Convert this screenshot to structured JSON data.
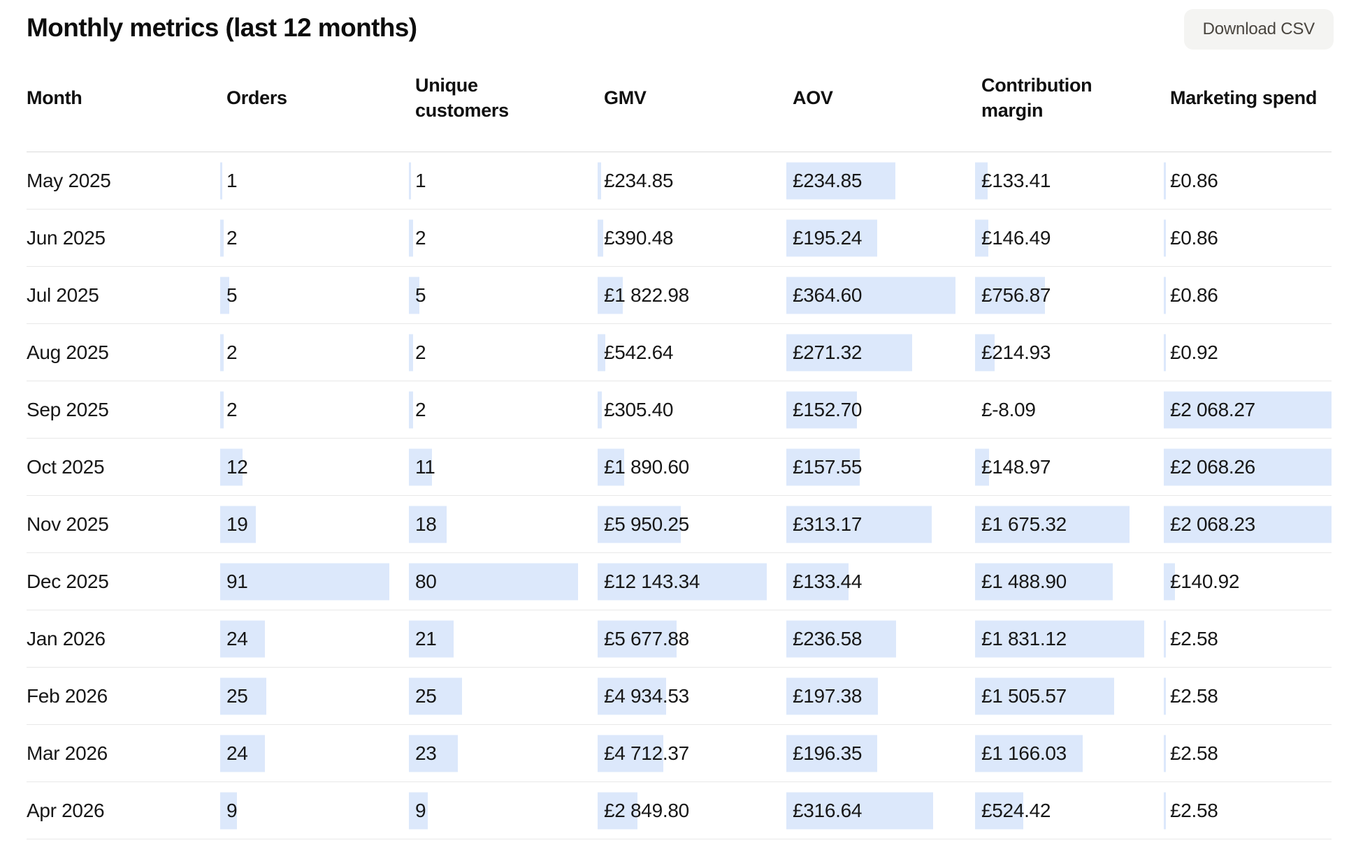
{
  "page": {
    "title": "Monthly metrics (last 12 months)",
    "download_button_label": "Download CSV"
  },
  "colors": {
    "bar": "#dce8fb",
    "row_divider": "#e8e8e8",
    "header_divider": "#dadada",
    "button_bg": "#f4f4f2",
    "button_text": "#49453f"
  },
  "table": {
    "columns": [
      {
        "key": "month",
        "label": "Month"
      },
      {
        "key": "orders",
        "label": "Orders",
        "max": 91
      },
      {
        "key": "unique_customers",
        "label": "Unique customers",
        "max": 80
      },
      {
        "key": "gmv",
        "label": "GMV",
        "max": 12143.34
      },
      {
        "key": "aov",
        "label": "AOV",
        "max": 364.6
      },
      {
        "key": "contribution_margin",
        "label": "Contribution margin",
        "max": 1831.12
      },
      {
        "key": "marketing_spend",
        "label": "Marketing spend",
        "max": 2068.27
      }
    ],
    "rows": [
      {
        "month": "May 2025",
        "values": [
          1,
          1,
          234.85,
          234.85,
          133.41,
          0.86
        ],
        "display": [
          "1",
          "1",
          "£234.85",
          "£234.85",
          "£133.41",
          "£0.86"
        ]
      },
      {
        "month": "Jun 2025",
        "values": [
          2,
          2,
          390.48,
          195.24,
          146.49,
          0.86
        ],
        "display": [
          "2",
          "2",
          "£390.48",
          "£195.24",
          "£146.49",
          "£0.86"
        ]
      },
      {
        "month": "Jul 2025",
        "values": [
          5,
          5,
          1822.98,
          364.6,
          756.87,
          0.86
        ],
        "display": [
          "5",
          "5",
          "£1 822.98",
          "£364.60",
          "£756.87",
          "£0.86"
        ]
      },
      {
        "month": "Aug 2025",
        "values": [
          2,
          2,
          542.64,
          271.32,
          214.93,
          0.92
        ],
        "display": [
          "2",
          "2",
          "£542.64",
          "£271.32",
          "£214.93",
          "£0.92"
        ]
      },
      {
        "month": "Sep 2025",
        "values": [
          2,
          2,
          305.4,
          152.7,
          -8.09,
          2068.27
        ],
        "display": [
          "2",
          "2",
          "£305.40",
          "£152.70",
          "£-8.09",
          "£2 068.27"
        ]
      },
      {
        "month": "Oct 2025",
        "values": [
          12,
          11,
          1890.6,
          157.55,
          148.97,
          2068.26
        ],
        "display": [
          "12",
          "11",
          "£1 890.60",
          "£157.55",
          "£148.97",
          "£2 068.26"
        ]
      },
      {
        "month": "Nov 2025",
        "values": [
          19,
          18,
          5950.25,
          313.17,
          1675.32,
          2068.23
        ],
        "display": [
          "19",
          "18",
          "£5 950.25",
          "£313.17",
          "£1 675.32",
          "£2 068.23"
        ]
      },
      {
        "month": "Dec 2025",
        "values": [
          91,
          80,
          12143.34,
          133.44,
          1488.9,
          140.92
        ],
        "display": [
          "91",
          "80",
          "£12 143.34",
          "£133.44",
          "£1 488.90",
          "£140.92"
        ]
      },
      {
        "month": "Jan 2026",
        "values": [
          24,
          21,
          5677.88,
          236.58,
          1831.12,
          2.58
        ],
        "display": [
          "24",
          "21",
          "£5 677.88",
          "£236.58",
          "£1 831.12",
          "£2.58"
        ]
      },
      {
        "month": "Feb 2026",
        "values": [
          25,
          25,
          4934.53,
          197.38,
          1505.57,
          2.58
        ],
        "display": [
          "25",
          "25",
          "£4 934.53",
          "£197.38",
          "£1 505.57",
          "£2.58"
        ]
      },
      {
        "month": "Mar 2026",
        "values": [
          24,
          23,
          4712.37,
          196.35,
          1166.03,
          2.58
        ],
        "display": [
          "24",
          "23",
          "£4 712.37",
          "£196.35",
          "£1 166.03",
          "£2.58"
        ]
      },
      {
        "month": "Apr 2026",
        "values": [
          9,
          9,
          2849.8,
          316.64,
          524.42,
          2.58
        ],
        "display": [
          "9",
          "9",
          "£2 849.80",
          "£316.64",
          "£524.42",
          "£2.58"
        ]
      }
    ]
  }
}
